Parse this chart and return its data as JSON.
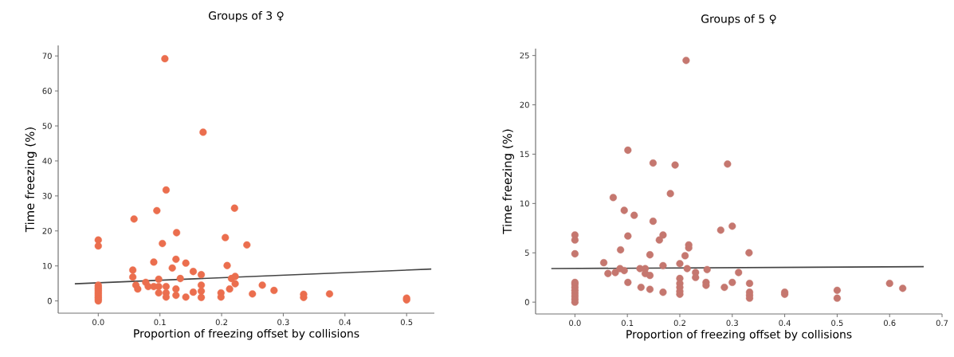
{
  "chart_data": [
    {
      "type": "scatter",
      "title": "Groups of 3 ♀",
      "xlabel": "Proportion of freezing offset by collisions",
      "ylabel": "Time freezing (%)",
      "xlim": [
        -0.065,
        0.545
      ],
      "ylim": [
        -3.5,
        73
      ],
      "xticks": [
        {
          "value": 0,
          "label": "0.0"
        },
        {
          "value": 0.1,
          "label": "0.1"
        },
        {
          "value": 0.2,
          "label": "0.2"
        },
        {
          "value": 0.3,
          "label": "0.3"
        },
        {
          "value": 0.4,
          "label": "0.4"
        },
        {
          "value": 0.5,
          "label": "0.5"
        }
      ],
      "yticks": [
        0,
        10,
        20,
        30,
        40,
        50,
        60,
        70
      ],
      "series": [
        {
          "color": "#eb6e4e",
          "x": [
            0.108,
            0.17,
            0.11,
            0.095,
            0.221,
            0.058,
            0,
            0,
            0.127,
            0.104,
            0.206,
            0.241,
            0.09,
            0.126,
            0.142,
            0.12,
            0.209,
            0.154,
            0.056,
            0.167,
            0.056,
            0.133,
            0.098,
            0.216,
            0.222,
            0.222,
            0.077,
            0.061,
            0.064,
            0.081,
            0.09,
            0.098,
            0.11,
            0.126,
            0.167,
            0.167,
            0.167,
            0.154,
            0.142,
            0.098,
            0.11,
            0.11,
            0.126,
            0.199,
            0.199,
            0.213,
            0.266,
            0.25,
            0.285,
            0.333,
            0.333,
            0.375,
            0.5,
            0.5,
            0,
            0,
            0,
            0,
            0,
            0,
            0,
            0,
            0,
            0
          ],
          "values": [
            69.2,
            48.2,
            31.7,
            25.8,
            26.5,
            23.4,
            17.4,
            15.7,
            19.5,
            16.4,
            18.1,
            16.0,
            11.1,
            11.9,
            10.8,
            9.4,
            10.1,
            8.4,
            8.8,
            7.5,
            6.8,
            6.4,
            6.2,
            6.4,
            7.0,
            4.9,
            5.3,
            4.5,
            3.4,
            4.1,
            4.1,
            4.1,
            4.1,
            3.4,
            4.5,
            2.8,
            1.0,
            2.5,
            1.1,
            2.3,
            2.3,
            1.1,
            1.6,
            2.3,
            1.1,
            3.4,
            4.5,
            2.0,
            3.0,
            1.9,
            1.0,
            2.0,
            0.8,
            0.3,
            0,
            0.5,
            1.0,
            1.5,
            2.0,
            2.5,
            3.0,
            3.5,
            4.0,
            4.5
          ]
        },
        {
          "type": "line",
          "marker": "none",
          "color": "#444444",
          "x": [
            -0.038,
            0.54
          ],
          "values": [
            4.9,
            9.1
          ]
        }
      ]
    },
    {
      "type": "scatter",
      "title": "Groups of 5 ♀",
      "xlabel": "Proportion of freezing offset by collisions",
      "ylabel": "Time freezing (%)",
      "xlim": [
        -0.075,
        0.7
      ],
      "ylim": [
        -1.2,
        25.7
      ],
      "xticks": [
        {
          "value": 0,
          "label": "0.0"
        },
        {
          "value": 0.1,
          "label": "0.1"
        },
        {
          "value": 0.2,
          "label": "0.2"
        },
        {
          "value": 0.3,
          "label": "0.3"
        },
        {
          "value": 0.4,
          "label": "0.4"
        },
        {
          "value": 0.5,
          "label": "0.5"
        },
        {
          "value": 0.6,
          "label": "0.6"
        },
        {
          "value": 0.7,
          "label": "0.7"
        }
      ],
      "yticks": [
        0,
        5,
        10,
        15,
        20,
        25
      ],
      "series": [
        {
          "color": "#c5776f",
          "x": [
            0.212,
            0.101,
            0.149,
            0.191,
            0.291,
            0.182,
            0.073,
            0.094,
            0.113,
            0.149,
            0.278,
            0.3,
            0,
            0,
            0.101,
            0.168,
            0.161,
            0.217,
            0.217,
            0.087,
            0,
            0.143,
            0.21,
            0.332,
            0.055,
            0.168,
            0.2,
            0.214,
            0.252,
            0.124,
            0.134,
            0.063,
            0.077,
            0.086,
            0.094,
            0.134,
            0.143,
            0.23,
            0.23,
            0.312,
            0.101,
            0.3,
            0.333,
            0.25,
            0.25,
            0.2,
            0.2,
            0.2,
            0.2,
            0.2,
            0.126,
            0.143,
            0.168,
            0.285,
            0.333,
            0.333,
            0.333,
            0.4,
            0.4,
            0.5,
            0.5,
            0.6,
            0.625,
            0,
            0,
            0,
            0,
            0,
            0,
            0,
            0
          ],
          "values": [
            24.5,
            15.4,
            14.1,
            13.9,
            14.0,
            11.0,
            10.6,
            9.3,
            8.8,
            8.2,
            7.3,
            7.7,
            6.8,
            6.3,
            6.7,
            6.8,
            6.3,
            5.8,
            5.5,
            5.3,
            4.9,
            4.8,
            4.7,
            5.0,
            4.0,
            3.7,
            3.9,
            3.4,
            3.3,
            3.4,
            3.4,
            2.9,
            3.0,
            3.4,
            3.2,
            2.9,
            2.7,
            3.0,
            2.5,
            3.0,
            2.0,
            2.0,
            1.9,
            2.0,
            1.7,
            2.4,
            1.9,
            1.5,
            1.1,
            0.8,
            1.5,
            1.3,
            1.0,
            1.5,
            1.0,
            0.7,
            0.4,
            1.0,
            0.8,
            1.2,
            0.4,
            1.9,
            1.4,
            0,
            0.3,
            0.6,
            0.9,
            1.2,
            1.5,
            1.8,
            2.0
          ]
        },
        {
          "type": "line",
          "marker": "none",
          "color": "#444444",
          "x": [
            -0.045,
            0.665
          ],
          "values": [
            3.4,
            3.6
          ]
        }
      ]
    }
  ]
}
